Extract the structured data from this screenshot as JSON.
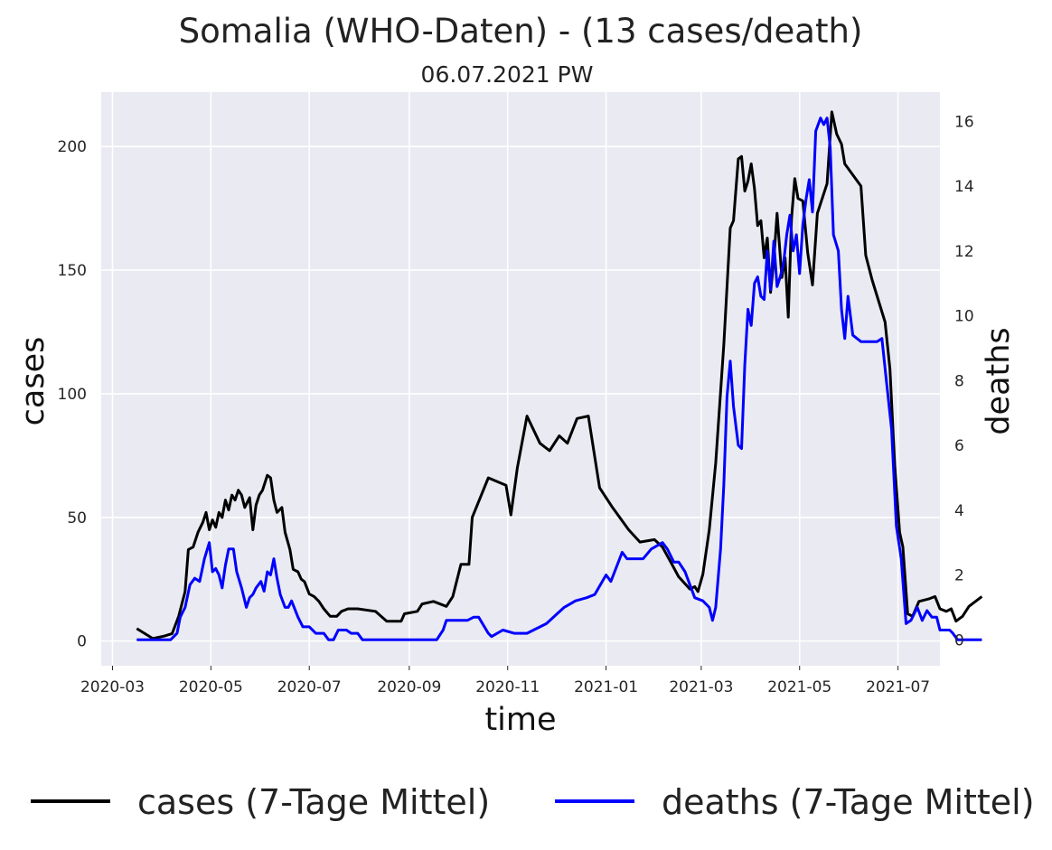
{
  "chart_data": {
    "type": "line",
    "title": "Somalia (WHO-Daten) - (13 cases/death)",
    "subtitle": "06.07.2021 PW",
    "xlabel": "time",
    "ylabel": "cases",
    "y2label": "deaths",
    "x_ticks": [
      "2020-03",
      "2020-05",
      "2020-07",
      "2020-09",
      "2020-11",
      "2021-01",
      "2021-03",
      "2021-05",
      "2021-07"
    ],
    "y_ticks": [
      0,
      50,
      100,
      150,
      200
    ],
    "y2_ticks": [
      0,
      2,
      4,
      6,
      8,
      10,
      12,
      14,
      16
    ],
    "xlim": [
      "2020-02-23",
      "2021-07-27"
    ],
    "ylim": [
      -10,
      222
    ],
    "y2lim": [
      -0.8,
      16.9
    ],
    "grid": true,
    "legend": "bottom",
    "colors": {
      "cases": "#000000",
      "deaths": "#0000ff",
      "background": "#eaeaf2"
    },
    "series": [
      {
        "name": "cases (7-Tage Mittel)",
        "axis": "left",
        "points": [
          [
            "2020-03-16",
            5
          ],
          [
            "2020-03-26",
            1
          ],
          [
            "2020-04-02",
            2
          ],
          [
            "2020-04-07",
            3
          ],
          [
            "2020-04-11",
            10
          ],
          [
            "2020-04-15",
            20
          ],
          [
            "2020-04-17",
            37
          ],
          [
            "2020-04-20",
            38
          ],
          [
            "2020-04-23",
            44
          ],
          [
            "2020-04-26",
            48
          ],
          [
            "2020-04-28",
            52
          ],
          [
            "2020-04-30",
            45
          ],
          [
            "2020-05-02",
            49
          ],
          [
            "2020-05-04",
            46
          ],
          [
            "2020-05-06",
            52
          ],
          [
            "2020-05-08",
            50
          ],
          [
            "2020-05-10",
            57
          ],
          [
            "2020-05-12",
            53
          ],
          [
            "2020-05-14",
            59
          ],
          [
            "2020-05-16",
            57
          ],
          [
            "2020-05-18",
            61
          ],
          [
            "2020-05-20",
            59
          ],
          [
            "2020-05-22",
            54
          ],
          [
            "2020-05-25",
            58
          ],
          [
            "2020-05-27",
            45
          ],
          [
            "2020-05-29",
            55
          ],
          [
            "2020-05-31",
            59
          ],
          [
            "2020-06-02",
            61
          ],
          [
            "2020-06-05",
            67
          ],
          [
            "2020-06-07",
            66
          ],
          [
            "2020-06-09",
            57
          ],
          [
            "2020-06-11",
            52
          ],
          [
            "2020-06-14",
            54
          ],
          [
            "2020-06-16",
            44
          ],
          [
            "2020-06-19",
            37
          ],
          [
            "2020-06-21",
            29
          ],
          [
            "2020-06-24",
            28
          ],
          [
            "2020-06-26",
            25
          ],
          [
            "2020-06-28",
            24
          ],
          [
            "2020-07-01",
            19
          ],
          [
            "2020-07-04",
            18
          ],
          [
            "2020-07-07",
            16
          ],
          [
            "2020-07-10",
            13
          ],
          [
            "2020-07-14",
            10
          ],
          [
            "2020-07-18",
            10
          ],
          [
            "2020-07-21",
            12
          ],
          [
            "2020-07-25",
            13
          ],
          [
            "2020-07-31",
            13
          ],
          [
            "2020-08-11",
            12
          ],
          [
            "2020-08-18",
            8
          ],
          [
            "2020-08-27",
            8
          ],
          [
            "2020-08-29",
            11
          ],
          [
            "2020-09-06",
            12
          ],
          [
            "2020-09-09",
            15
          ],
          [
            "2020-09-16",
            16
          ],
          [
            "2020-09-24",
            14
          ],
          [
            "2020-09-28",
            18
          ],
          [
            "2020-10-03",
            31
          ],
          [
            "2020-10-08",
            31
          ],
          [
            "2020-10-10",
            50
          ],
          [
            "2020-10-15",
            58
          ],
          [
            "2020-10-20",
            66
          ],
          [
            "2020-10-31",
            63
          ],
          [
            "2020-11-03",
            51
          ],
          [
            "2020-11-07",
            70
          ],
          [
            "2020-11-13",
            91
          ],
          [
            "2020-11-21",
            80
          ],
          [
            "2020-11-27",
            77
          ],
          [
            "2020-12-03",
            83
          ],
          [
            "2020-12-08",
            80
          ],
          [
            "2020-12-14",
            90
          ],
          [
            "2020-12-21",
            91
          ],
          [
            "2020-12-28",
            62
          ],
          [
            "2021-01-05",
            54
          ],
          [
            "2021-01-15",
            45
          ],
          [
            "2021-01-22",
            40
          ],
          [
            "2021-01-31",
            41
          ],
          [
            "2021-02-05",
            38
          ],
          [
            "2021-02-10",
            32
          ],
          [
            "2021-02-15",
            26
          ],
          [
            "2021-02-22",
            21
          ],
          [
            "2021-02-25",
            22
          ],
          [
            "2021-02-27",
            20
          ],
          [
            "2021-03-02",
            27
          ],
          [
            "2021-03-06",
            45
          ],
          [
            "2021-03-10",
            72
          ],
          [
            "2021-03-15",
            120
          ],
          [
            "2021-03-19",
            167
          ],
          [
            "2021-03-21",
            170
          ],
          [
            "2021-03-24",
            195
          ],
          [
            "2021-03-26",
            196
          ],
          [
            "2021-03-28",
            182
          ],
          [
            "2021-03-30",
            186
          ],
          [
            "2021-04-01",
            193
          ],
          [
            "2021-04-03",
            183
          ],
          [
            "2021-04-05",
            168
          ],
          [
            "2021-04-07",
            170
          ],
          [
            "2021-04-09",
            155
          ],
          [
            "2021-04-11",
            163
          ],
          [
            "2021-04-13",
            141
          ],
          [
            "2021-04-15",
            154
          ],
          [
            "2021-04-17",
            173
          ],
          [
            "2021-04-20",
            147
          ],
          [
            "2021-04-22",
            155
          ],
          [
            "2021-04-24",
            131
          ],
          [
            "2021-04-26",
            171
          ],
          [
            "2021-04-28",
            187
          ],
          [
            "2021-04-30",
            179
          ],
          [
            "2021-05-03",
            178
          ],
          [
            "2021-05-06",
            157
          ],
          [
            "2021-05-09",
            144
          ],
          [
            "2021-05-12",
            173
          ],
          [
            "2021-05-18",
            185
          ],
          [
            "2021-05-21",
            214
          ],
          [
            "2021-05-24",
            205
          ],
          [
            "2021-05-27",
            201
          ],
          [
            "2021-05-29",
            193
          ],
          [
            "2021-06-08",
            184
          ],
          [
            "2021-06-11",
            156
          ],
          [
            "2021-06-15",
            146
          ],
          [
            "2021-06-23",
            129
          ],
          [
            "2021-06-26",
            110
          ],
          [
            "2021-06-29",
            71
          ],
          [
            "2021-07-02",
            44
          ],
          [
            "2021-07-04",
            38
          ],
          [
            "2021-07-07",
            11
          ],
          [
            "2021-07-10",
            10
          ],
          [
            "2021-07-14",
            16
          ],
          [
            "2021-07-20",
            17
          ],
          [
            "2021-07-24",
            18
          ],
          [
            "2021-07-27",
            13
          ],
          [
            "2021-07-31",
            12
          ],
          [
            "2021-08-03",
            13
          ],
          [
            "2021-08-06",
            8
          ],
          [
            "2021-08-10",
            10
          ],
          [
            "2021-08-14",
            14
          ],
          [
            "2021-08-18",
            16
          ],
          [
            "2021-08-22",
            18
          ]
        ]
      },
      {
        "name": "deaths (7-Tage Mittel)",
        "axis": "right",
        "points": [
          [
            "2020-03-16",
            0
          ],
          [
            "2020-03-26",
            0
          ],
          [
            "2020-04-06",
            0
          ],
          [
            "2020-04-10",
            0.2
          ],
          [
            "2020-04-12",
            0.7
          ],
          [
            "2020-04-15",
            1.0
          ],
          [
            "2020-04-18",
            1.7
          ],
          [
            "2020-04-21",
            1.9
          ],
          [
            "2020-04-24",
            1.8
          ],
          [
            "2020-04-27",
            2.5
          ],
          [
            "2020-04-30",
            3.0
          ],
          [
            "2020-05-02",
            2.1
          ],
          [
            "2020-05-04",
            2.2
          ],
          [
            "2020-05-06",
            2.0
          ],
          [
            "2020-05-08",
            1.6
          ],
          [
            "2020-05-10",
            2.3
          ],
          [
            "2020-05-12",
            2.8
          ],
          [
            "2020-05-15",
            2.8
          ],
          [
            "2020-05-17",
            2.1
          ],
          [
            "2020-05-20",
            1.6
          ],
          [
            "2020-05-23",
            1.0
          ],
          [
            "2020-05-25",
            1.3
          ],
          [
            "2020-05-27",
            1.4
          ],
          [
            "2020-05-29",
            1.6
          ],
          [
            "2020-06-01",
            1.8
          ],
          [
            "2020-06-03",
            1.5
          ],
          [
            "2020-06-05",
            2.1
          ],
          [
            "2020-06-07",
            2.0
          ],
          [
            "2020-06-09",
            2.5
          ],
          [
            "2020-06-11",
            1.9
          ],
          [
            "2020-06-13",
            1.4
          ],
          [
            "2020-06-16",
            1.0
          ],
          [
            "2020-06-18",
            1.0
          ],
          [
            "2020-06-20",
            1.2
          ],
          [
            "2020-06-24",
            0.7
          ],
          [
            "2020-06-27",
            0.4
          ],
          [
            "2020-07-01",
            0.4
          ],
          [
            "2020-07-05",
            0.2
          ],
          [
            "2020-07-10",
            0.2
          ],
          [
            "2020-07-13",
            0
          ],
          [
            "2020-07-16",
            0
          ],
          [
            "2020-07-19",
            0.3
          ],
          [
            "2020-07-24",
            0.3
          ],
          [
            "2020-07-27",
            0.2
          ],
          [
            "2020-07-31",
            0.2
          ],
          [
            "2020-08-03",
            0
          ],
          [
            "2020-09-18",
            0
          ],
          [
            "2020-09-22",
            0.3
          ],
          [
            "2020-09-24",
            0.6
          ],
          [
            "2020-10-07",
            0.6
          ],
          [
            "2020-10-11",
            0.7
          ],
          [
            "2020-10-14",
            0.7
          ],
          [
            "2020-10-20",
            0.2
          ],
          [
            "2020-10-22",
            0.1
          ],
          [
            "2020-10-29",
            0.3
          ],
          [
            "2020-11-05",
            0.2
          ],
          [
            "2020-11-13",
            0.2
          ],
          [
            "2020-11-25",
            0.5
          ],
          [
            "2020-12-06",
            1.0
          ],
          [
            "2020-12-13",
            1.2
          ],
          [
            "2020-12-20",
            1.3
          ],
          [
            "2020-12-25",
            1.4
          ],
          [
            "2021-01-01",
            2.0
          ],
          [
            "2021-01-04",
            1.8
          ],
          [
            "2021-01-11",
            2.7
          ],
          [
            "2021-01-14",
            2.5
          ],
          [
            "2021-01-21",
            2.5
          ],
          [
            "2021-01-24",
            2.5
          ],
          [
            "2021-01-29",
            2.8
          ],
          [
            "2021-02-05",
            3.0
          ],
          [
            "2021-02-08",
            2.8
          ],
          [
            "2021-02-12",
            2.4
          ],
          [
            "2021-02-15",
            2.4
          ],
          [
            "2021-02-19",
            2.1
          ],
          [
            "2021-02-25",
            1.3
          ],
          [
            "2021-03-02",
            1.2
          ],
          [
            "2021-03-06",
            1.0
          ],
          [
            "2021-03-08",
            0.6
          ],
          [
            "2021-03-10",
            1.0
          ],
          [
            "2021-03-13",
            2.8
          ],
          [
            "2021-03-15",
            4.8
          ],
          [
            "2021-03-17",
            7.5
          ],
          [
            "2021-03-19",
            8.6
          ],
          [
            "2021-03-21",
            7.2
          ],
          [
            "2021-03-24",
            6.0
          ],
          [
            "2021-03-26",
            5.9
          ],
          [
            "2021-03-28",
            8.5
          ],
          [
            "2021-03-30",
            10.2
          ],
          [
            "2021-04-01",
            9.7
          ],
          [
            "2021-04-03",
            11.0
          ],
          [
            "2021-04-05",
            11.2
          ],
          [
            "2021-04-07",
            10.6
          ],
          [
            "2021-04-09",
            10.5
          ],
          [
            "2021-04-11",
            12.0
          ],
          [
            "2021-04-13",
            10.8
          ],
          [
            "2021-04-15",
            12.3
          ],
          [
            "2021-04-17",
            10.9
          ],
          [
            "2021-04-19",
            11.2
          ],
          [
            "2021-04-21",
            11.6
          ],
          [
            "2021-04-23",
            12.5
          ],
          [
            "2021-04-25",
            13.1
          ],
          [
            "2021-04-27",
            12.0
          ],
          [
            "2021-04-29",
            12.5
          ],
          [
            "2021-05-01",
            11.3
          ],
          [
            "2021-05-03",
            12.8
          ],
          [
            "2021-05-05",
            13.6
          ],
          [
            "2021-05-07",
            14.2
          ],
          [
            "2021-05-09",
            13.2
          ],
          [
            "2021-05-11",
            15.7
          ],
          [
            "2021-05-14",
            16.1
          ],
          [
            "2021-05-16",
            15.9
          ],
          [
            "2021-05-18",
            16.1
          ],
          [
            "2021-05-20",
            15.2
          ],
          [
            "2021-05-22",
            12.5
          ],
          [
            "2021-05-25",
            12.0
          ],
          [
            "2021-05-27",
            10.2
          ],
          [
            "2021-05-29",
            9.3
          ],
          [
            "2021-05-31",
            10.6
          ],
          [
            "2021-06-03",
            9.4
          ],
          [
            "2021-06-08",
            9.2
          ],
          [
            "2021-06-18",
            9.2
          ],
          [
            "2021-06-21",
            9.3
          ],
          [
            "2021-06-24",
            7.9
          ],
          [
            "2021-06-27",
            6.5
          ],
          [
            "2021-06-30",
            3.5
          ],
          [
            "2021-07-03",
            2.5
          ],
          [
            "2021-07-06",
            0.5
          ],
          [
            "2021-07-09",
            0.6
          ],
          [
            "2021-07-13",
            1.0
          ],
          [
            "2021-07-16",
            0.6
          ],
          [
            "2021-07-19",
            0.9
          ],
          [
            "2021-07-22",
            0.7
          ],
          [
            "2021-07-25",
            0.7
          ],
          [
            "2021-07-27",
            0.3
          ],
          [
            "2021-08-02",
            0.3
          ],
          [
            "2021-08-04",
            0.2
          ],
          [
            "2021-08-07",
            0
          ],
          [
            "2021-08-22",
            0
          ]
        ]
      }
    ]
  }
}
